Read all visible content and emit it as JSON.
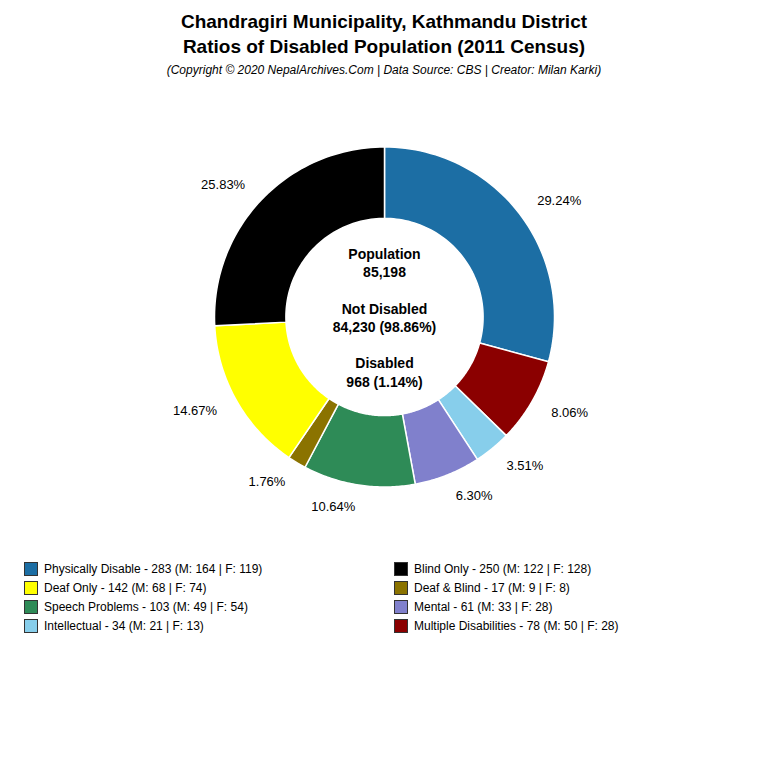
{
  "chart_data": {
    "type": "donut",
    "title": "Chandragiri Municipality, Kathmandu District\nRatios of Disabled Population (2011 Census)",
    "subtitle": "(Copyright © 2020 NepalArchives.Com | Data Source: CBS | Creator: Milan Karki)",
    "categories": [
      "Physically Disable - 283 (M: 164 | F: 119)",
      "Multiple Disabilities - 78 (M: 50 | F: 28)",
      "Intellectual - 34 (M: 21 | F: 13)",
      "Mental - 61 (M: 33 | F: 28)",
      "Speech Problems - 103 (M: 49 | F: 54)",
      "Deaf & Blind - 17 (M: 9 | F: 8)",
      "Deaf Only - 142 (M: 68 | F: 74)",
      "Blind Only - 250 (M: 122 | F: 128)"
    ],
    "values": [
      29.24,
      8.06,
      3.51,
      6.3,
      10.64,
      1.76,
      14.67,
      25.83
    ],
    "value_labels": [
      "29.24%",
      "8.06%",
      "3.51%",
      "6.30%",
      "10.64%",
      "1.76%",
      "14.67%",
      "25.83%"
    ],
    "colors": [
      "#1c6ea4",
      "#8b0000",
      "#87ceeb",
      "#8080cc",
      "#2e8b57",
      "#8b7300",
      "#ffff00",
      "#000000"
    ],
    "data_labels": true,
    "annotations": [
      "Population\n85,198\n\nNot Disabled\n84,230 (98.86%)\n\nDisabled\n968 (1.14%)"
    ],
    "legend": "bottom"
  }
}
